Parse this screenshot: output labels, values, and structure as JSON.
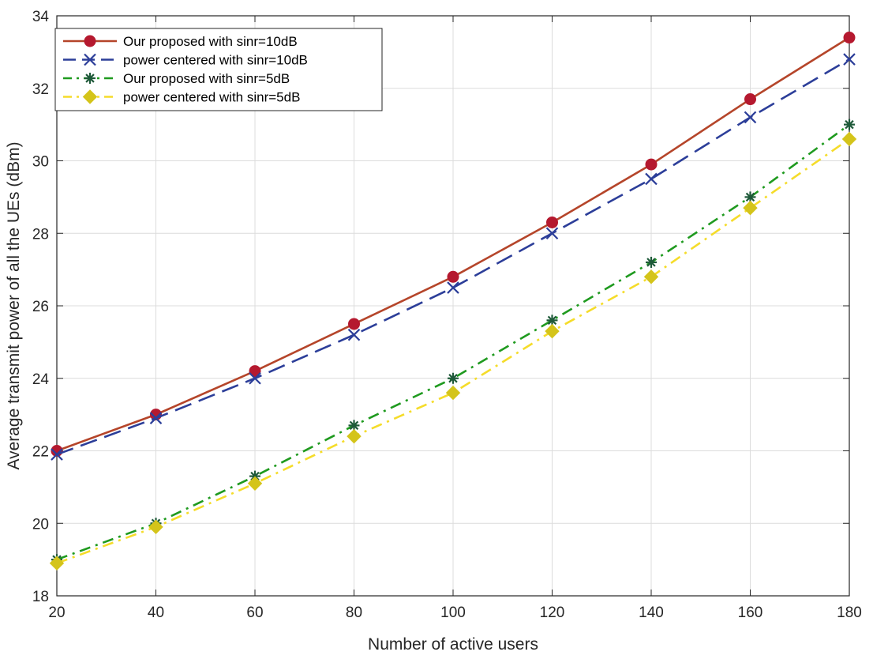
{
  "chart_data": {
    "type": "line",
    "title": "",
    "xlabel": "Number of active users",
    "ylabel": "Average transmit power of all the UEs (dBm)",
    "x": [
      20,
      40,
      60,
      80,
      100,
      120,
      140,
      160,
      180
    ],
    "xlim": [
      20,
      180
    ],
    "ylim": [
      18,
      34
    ],
    "xticks": [
      20,
      40,
      60,
      80,
      100,
      120,
      140,
      160,
      180
    ],
    "yticks": [
      18,
      20,
      22,
      24,
      26,
      28,
      30,
      32,
      34
    ],
    "grid": true,
    "legend_position": "top-left",
    "series": [
      {
        "name": "Our proposed with sinr=10dB",
        "values": [
          22.0,
          23.0,
          24.2,
          25.5,
          26.8,
          28.3,
          29.9,
          31.7,
          33.4
        ],
        "color": "#b5452a",
        "marker_color": "#b5192f",
        "line_style": "solid",
        "marker": "circle"
      },
      {
        "name": "power centered with sinr=10dB",
        "values": [
          21.9,
          22.9,
          24.0,
          25.2,
          26.5,
          28.0,
          29.5,
          31.2,
          32.8
        ],
        "color": "#2c3e99",
        "marker_color": "#2c3e99",
        "line_style": "dashed",
        "marker": "x"
      },
      {
        "name": "Our proposed with sinr=5dB",
        "values": [
          19.0,
          20.0,
          21.3,
          22.7,
          24.0,
          25.6,
          27.2,
          29.0,
          31.0
        ],
        "color": "#1f9a1f",
        "marker_color": "#1f5a3a",
        "line_style": "dashdot",
        "marker": "asterisk"
      },
      {
        "name": "power centered with sinr=5dB",
        "values": [
          18.9,
          19.9,
          21.1,
          22.4,
          23.6,
          25.3,
          26.8,
          28.7,
          30.6
        ],
        "color": "#f5dc2a",
        "marker_color": "#d4c41a",
        "line_style": "dashdot",
        "marker": "diamond"
      }
    ]
  }
}
